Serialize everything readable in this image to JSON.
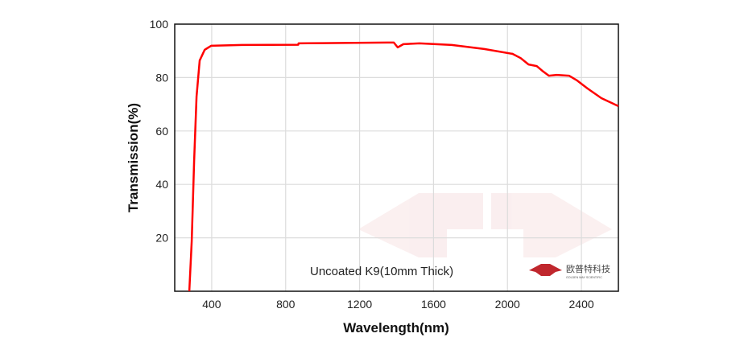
{
  "chart_data": {
    "type": "line",
    "title": "",
    "xlabel": "Wavelength(nm)",
    "ylabel": "Transmission(%)",
    "xlim": [
      200,
      2600
    ],
    "ylim": [
      0,
      100
    ],
    "xticks": [
      400,
      800,
      1200,
      1600,
      2000,
      2400
    ],
    "yticks": [
      20,
      40,
      60,
      80,
      100
    ],
    "grid": true,
    "annotation": "Uncoated K9(10mm Thick)",
    "series": [
      {
        "color": "#ff0000",
        "x": [
          279,
          292,
          305,
          318,
          335,
          362,
          397,
          563,
          868,
          870,
          1000,
          1350,
          1385,
          1406,
          1437,
          1524,
          1699,
          1874,
          2027,
          2071,
          2114,
          2158,
          2189,
          2224,
          2267,
          2333,
          2377,
          2433,
          2508,
          2600
        ],
        "y": [
          0,
          18.7,
          48.8,
          72.9,
          86.4,
          90.4,
          91.9,
          92.2,
          92.3,
          92.8,
          92.9,
          93.1,
          93.1,
          91.3,
          92.5,
          92.8,
          92.2,
          90.7,
          88.9,
          87.3,
          84.9,
          84.3,
          82.5,
          80.7,
          81.0,
          80.7,
          78.9,
          75.9,
          72.3,
          69.3
        ]
      }
    ],
    "logo": {
      "text_cn": "欧普特科技",
      "text_en": "GOLDEN WAY SCIENTIFIC",
      "color": "#c0272d"
    }
  }
}
